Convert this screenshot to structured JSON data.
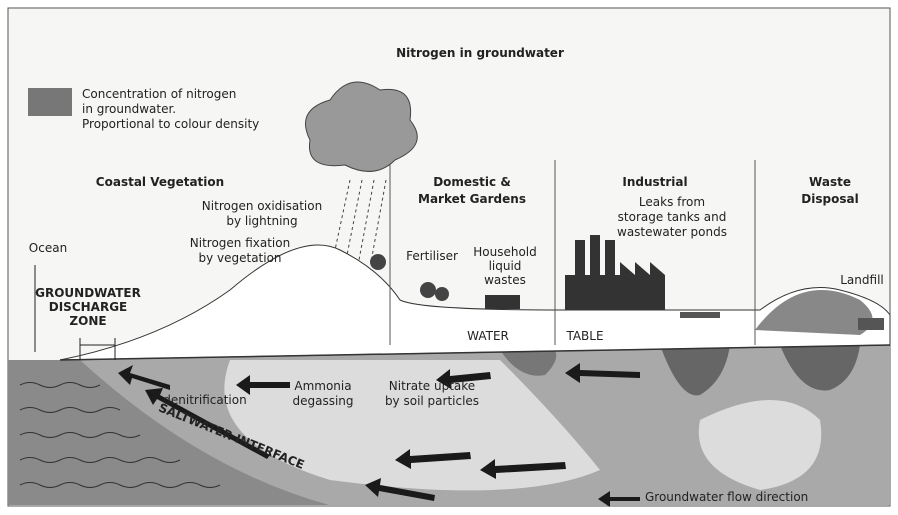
{
  "title": "Nitrogen in groundwater",
  "legend": {
    "lines": [
      "Concentration of nitrogen",
      "in groundwater.",
      "Proportional to colour density"
    ]
  },
  "sections": [
    {
      "lines": [
        "Coastal Vegetation"
      ]
    },
    {
      "lines": [
        "Domestic &",
        "Market Gardens"
      ]
    },
    {
      "lines": [
        "Industrial"
      ]
    },
    {
      "lines": [
        "Waste",
        "Disposal"
      ]
    }
  ],
  "labels": [
    {
      "lines": [
        "Ocean"
      ]
    },
    {
      "lines": [
        "GROUNDWATER",
        "DISCHARGE",
        "ZONE"
      ]
    },
    {
      "lines": [
        "Nitrogen oxidisation",
        "by lightning"
      ]
    },
    {
      "lines": [
        "Nitrogen fixation",
        "by vegetation"
      ]
    },
    {
      "lines": [
        "Fertiliser"
      ]
    },
    {
      "lines": [
        "Household",
        "liquid",
        "wastes"
      ]
    },
    {
      "lines": [
        "Leaks from",
        "storage tanks and",
        "wastewater ponds"
      ]
    },
    {
      "lines": [
        "Landfill"
      ]
    },
    {
      "lines": [
        "WATER"
      ]
    },
    {
      "lines": [
        "TABLE"
      ]
    },
    {
      "lines": [
        "denitrification"
      ]
    },
    {
      "lines": [
        "Ammonia",
        "degassing"
      ]
    },
    {
      "lines": [
        "Nitrate uptake",
        "by soil particles"
      ]
    },
    {
      "lines": [
        "SALTWATER INTERFACE"
      ]
    },
    {
      "lines": [
        "Groundwater flow direction"
      ]
    }
  ]
}
